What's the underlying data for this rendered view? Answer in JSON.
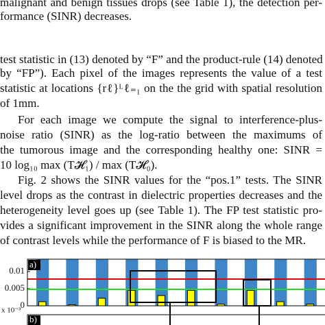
{
  "text": {
    "top": [
      "malignant and benign tissues drops (see Table 1), the detection per-",
      "formance (SINR) decreases."
    ],
    "paragraphs": [
      [
        "test statistic in (13) denoted by “F” and the product-rule (14) denoted",
        "by “FP”). Each pixel of the images represents the value of a test",
        "statistic at locations {rℓ}ᴸℓ₌₁ on the the grid with spatial resolution",
        "of 1mm."
      ],
      [
        "For each image we compute the signal to interference-plus-",
        "noise ratio (SINR) as the log-ratio between the maximums of",
        "the tumorous image and the corresponding healthy one: SINR =",
        "10 log₁₀ max (T𝓗₁) / max (T𝓗₀)."
      ],
      [
        "Fig. 2 shows the SINR values for the “pos.1” tests. The SINR",
        "level drops as the contrast in dielectric properties decreases and the",
        "heterogeneity level goes up (see Table 1). The FP test statistic pro-",
        "vides a significant improvement in the SINR along the whole range",
        "of contrast levels while the performance of F is biased to the MR."
      ]
    ]
  },
  "chart_data": {
    "type": "bar",
    "panel_label": "a)",
    "second_panel_label": "b)",
    "exponent_label": "x 10⁻³",
    "categories": [
      null,
      null,
      null,
      null,
      null,
      null,
      null,
      null,
      null,
      null
    ],
    "values": [
      0.0012,
      0.0003,
      0.0022,
      0.0045,
      0.003,
      0.0045,
      0.0005,
      0.0045,
      0.0012,
      0.0005
    ],
    "color": "#ffff00",
    "red_line": 0.0078,
    "green_line": 0.0048,
    "ylim": [
      0,
      0.0136
    ],
    "yticks": [
      0,
      0.005,
      0.01
    ]
  }
}
